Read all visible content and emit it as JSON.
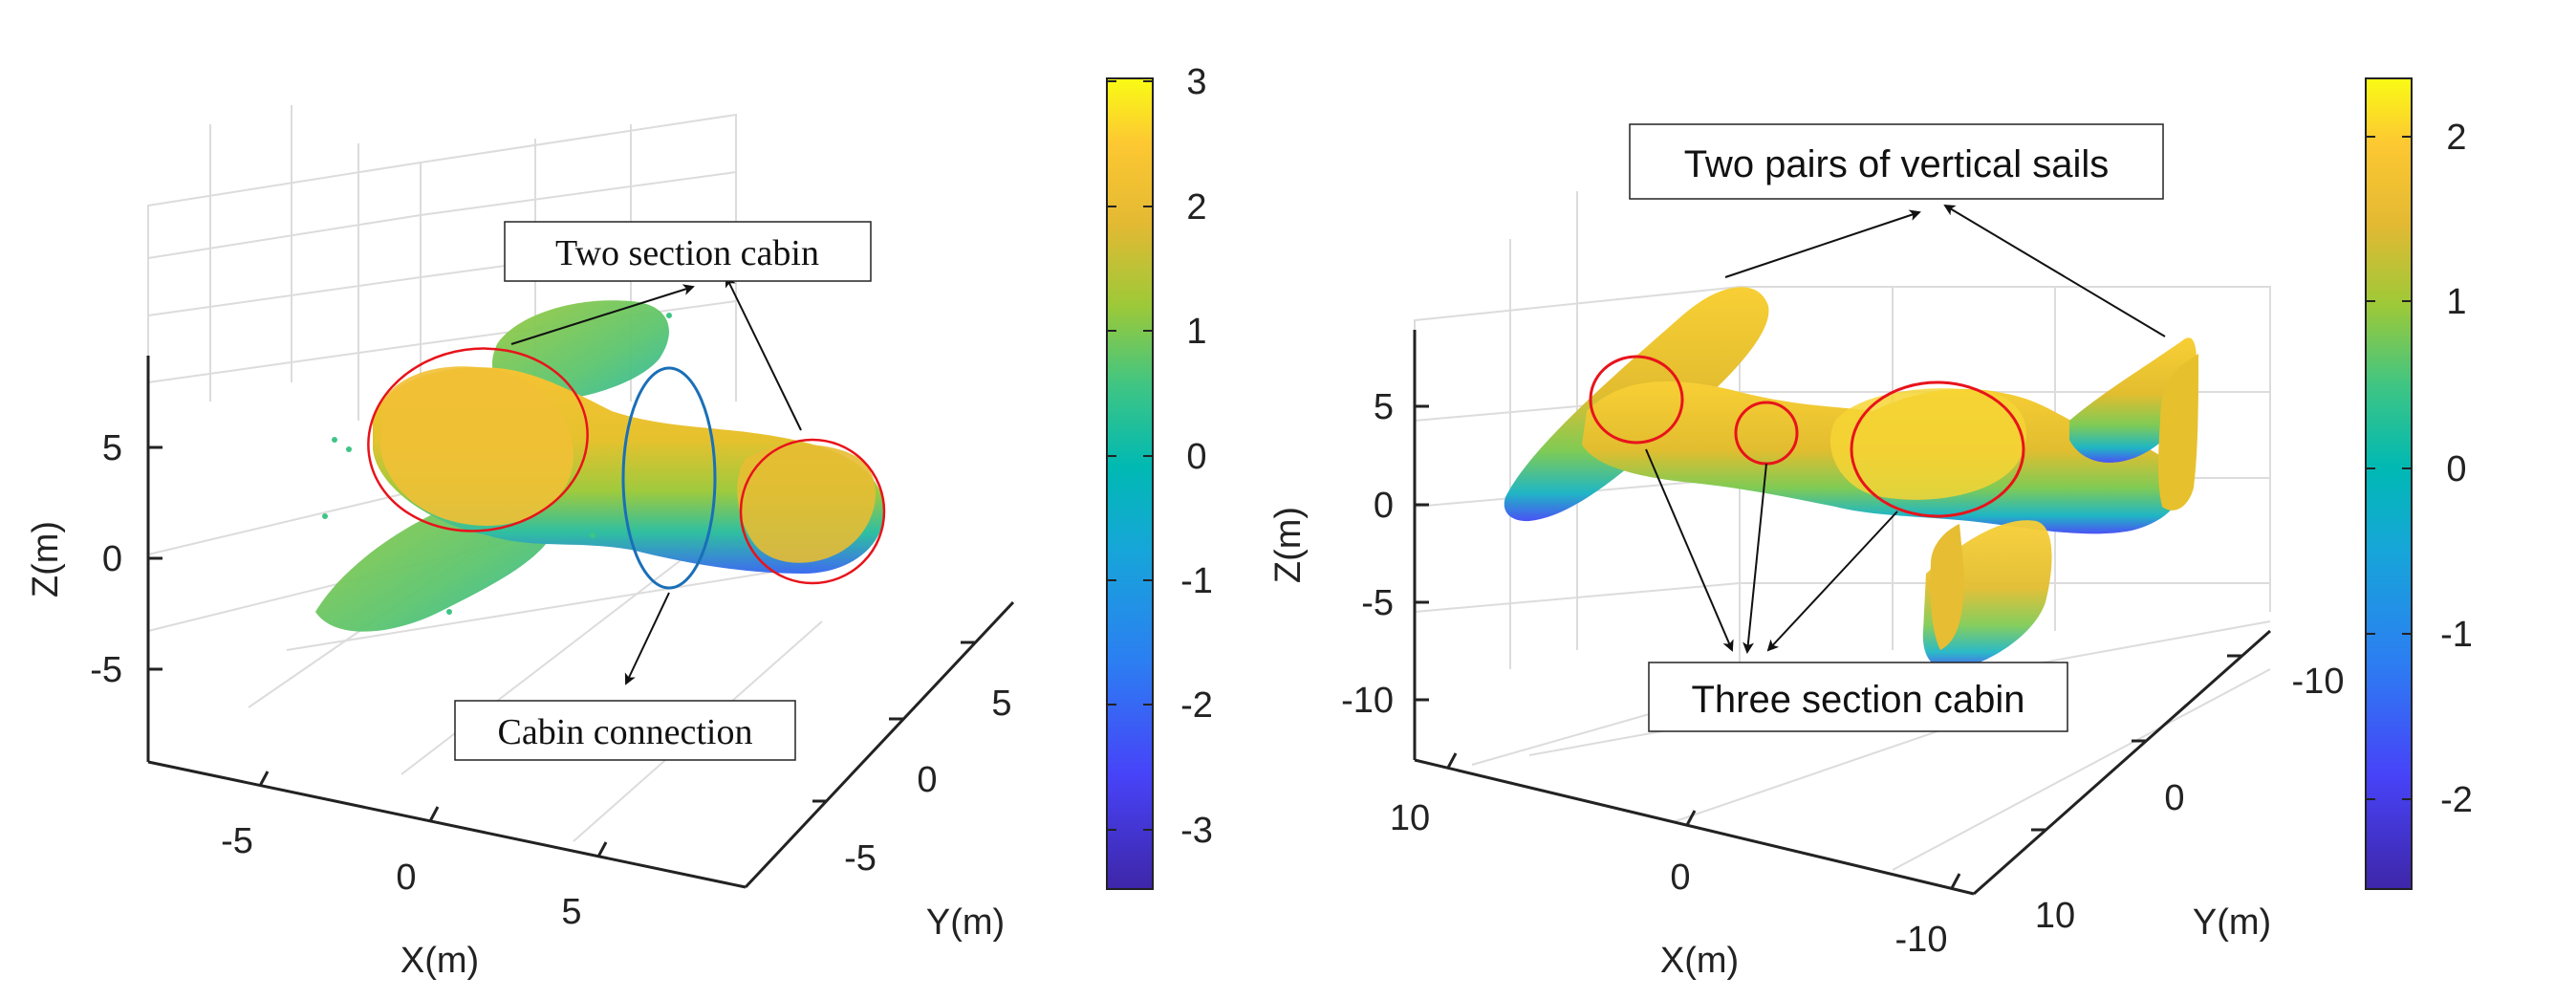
{
  "chart_data": [
    {
      "type": "scatter",
      "subtype": "3d-point-cloud",
      "xlabel": "X(m)",
      "ylabel": "Y(m)",
      "zlabel": "Z(m)",
      "x_ticks": [
        "-5",
        "0",
        "5"
      ],
      "y_ticks": [
        "-5",
        "0",
        "5"
      ],
      "z_ticks": [
        "-5",
        "0",
        "5"
      ],
      "grid": true,
      "colorbar": {
        "ticks": [
          "3",
          "2",
          "1",
          "0",
          "-1",
          "-2",
          "-3"
        ],
        "range": [
          -3.5,
          3
        ]
      },
      "annotations": [
        {
          "text": "Two section cabin"
        },
        {
          "text": "Cabin connection"
        }
      ]
    },
    {
      "type": "scatter",
      "subtype": "3d-point-cloud",
      "xlabel": "X(m)",
      "ylabel": "Y(m)",
      "zlabel": "Z(m)",
      "x_ticks": [
        "10",
        "0",
        "-10"
      ],
      "y_ticks": [
        "-10",
        "0",
        "10"
      ],
      "z_ticks": [
        "5",
        "0",
        "-5",
        "-10"
      ],
      "grid": true,
      "colorbar": {
        "ticks": [
          "2",
          "1",
          "0",
          "-1",
          "-2"
        ],
        "range": [
          -2.5,
          2.3
        ]
      },
      "annotations": [
        {
          "text": "Two pairs of vertical sails"
        },
        {
          "text": "Three section cabin"
        }
      ]
    }
  ],
  "colormap": [
    "#3e26a8",
    "#4743f8",
    "#2c7ef2",
    "#16a6d8",
    "#00b9b3",
    "#3ec584",
    "#9dc938",
    "#e3b933",
    "#fdc832",
    "#f9fb15"
  ],
  "accent": {
    "ellipse_red": "#e8131b",
    "ellipse_blue": "#1a6fb7"
  }
}
